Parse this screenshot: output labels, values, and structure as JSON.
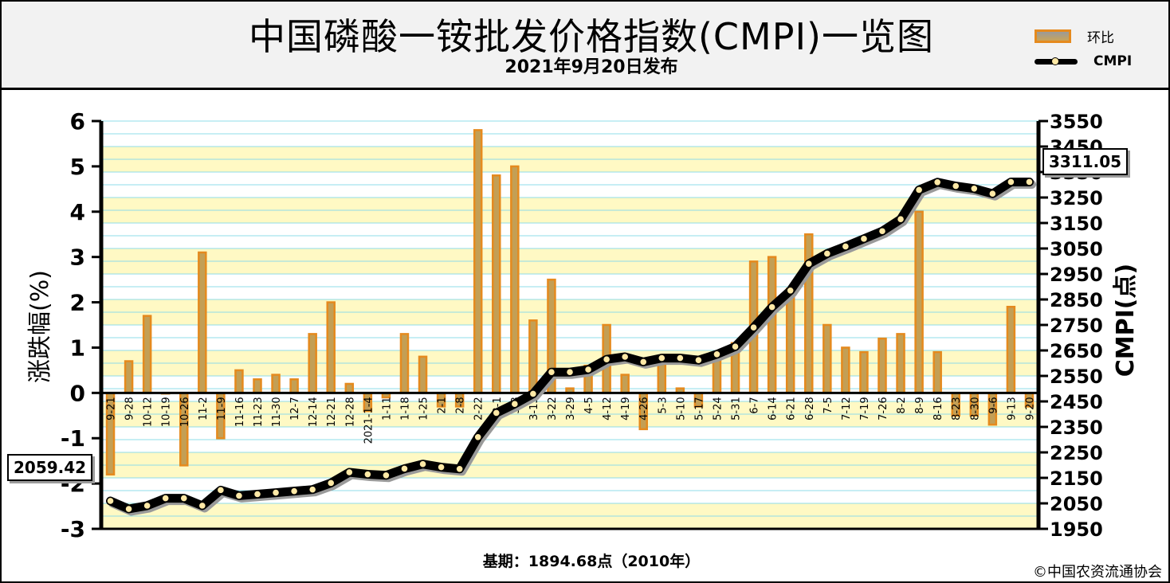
{
  "header": {
    "title": "中国磷酸一铵批发价格指数(CMPI)一览图",
    "subtitle": "2021年9月20日发布"
  },
  "legend": {
    "bar_label": "环比",
    "line_label": "CMPI"
  },
  "footer": {
    "base_text": "基期：1894.68点（2010年）",
    "copyright": "©中国农资流通协会"
  },
  "callouts": {
    "start_value": "2059.42",
    "end_value": "3311.05"
  },
  "colors": {
    "bar_fill": "#c39f55",
    "bar_border": "#e58a1e",
    "line": "#000000",
    "marker": "#ffe9a6",
    "band_yellow": "#fff9c4",
    "grid": "#8fdce8"
  },
  "chart_data": {
    "type": "bar+line",
    "categories": [
      "9-21",
      "9-28",
      "10-12",
      "10-19",
      "10-26",
      "11-2",
      "11-9",
      "11-16",
      "11-23",
      "11-30",
      "12-7",
      "12-14",
      "12-21",
      "12-28",
      "2021-1-4",
      "1-11",
      "1-18",
      "1-25",
      "2-1",
      "2-8",
      "2-22",
      "3-1",
      "3-8",
      "3-15",
      "3-22",
      "3-29",
      "4-5",
      "4-12",
      "4-19",
      "4-26",
      "5-3",
      "5-10",
      "5-17",
      "5-24",
      "5-31",
      "6-7",
      "6-14",
      "6-21",
      "6-28",
      "7-5",
      "7-12",
      "7-19",
      "7-26",
      "8-2",
      "8-9",
      "8-16",
      "8-23",
      "8-30",
      "9-6",
      "9-13",
      "9-20"
    ],
    "series": [
      {
        "name": "环比",
        "axis": "left",
        "type": "bar",
        "values": [
          -1.8,
          0.7,
          1.7,
          0,
          -1.6,
          3.1,
          -1.0,
          0.5,
          0.3,
          0.4,
          0.3,
          1.3,
          2.0,
          0.2,
          -0.4,
          -0.1,
          1.3,
          0.8,
          -0.3,
          -0.3,
          5.8,
          4.8,
          5.0,
          1.6,
          2.5,
          0.1,
          0.6,
          1.5,
          0.4,
          -0.8,
          0.7,
          0.1,
          -0.3,
          0.8,
          1.1,
          2.9,
          3.0,
          2.3,
          3.5,
          1.5,
          1.0,
          0.9,
          1.2,
          1.3,
          4.0,
          0.9,
          -0.5,
          -0.5,
          -0.7,
          1.9,
          -0.3
        ]
      },
      {
        "name": "CMPI",
        "axis": "right",
        "type": "line",
        "values": [
          2059.42,
          2028,
          2041,
          2070,
          2070,
          2041,
          2102,
          2080,
          2086,
          2092,
          2098,
          2104,
          2130,
          2172,
          2164,
          2160,
          2186,
          2204,
          2192,
          2185,
          2310,
          2405,
          2440,
          2480,
          2565,
          2565,
          2575,
          2615,
          2625,
          2605,
          2620,
          2620,
          2612,
          2635,
          2665,
          2740,
          2820,
          2885,
          2990,
          3030,
          3058,
          3088,
          3118,
          3165,
          3280,
          3310,
          3295,
          3285,
          3265,
          3311,
          3311.05
        ]
      }
    ],
    "y_left": {
      "label": "涨跌幅(%)",
      "min": -3,
      "max": 6,
      "ticks": [
        -3,
        -2,
        -1,
        0,
        1,
        2,
        3,
        4,
        5,
        6
      ]
    },
    "y_right": {
      "label": "CMPI(点)",
      "min": 1950,
      "max": 3550,
      "ticks": [
        1950,
        2050,
        2150,
        2250,
        2350,
        2450,
        2550,
        2650,
        2750,
        2850,
        2950,
        3050,
        3150,
        3250,
        3350,
        3450,
        3550
      ]
    },
    "grid": true,
    "legend_position": "top-right"
  }
}
